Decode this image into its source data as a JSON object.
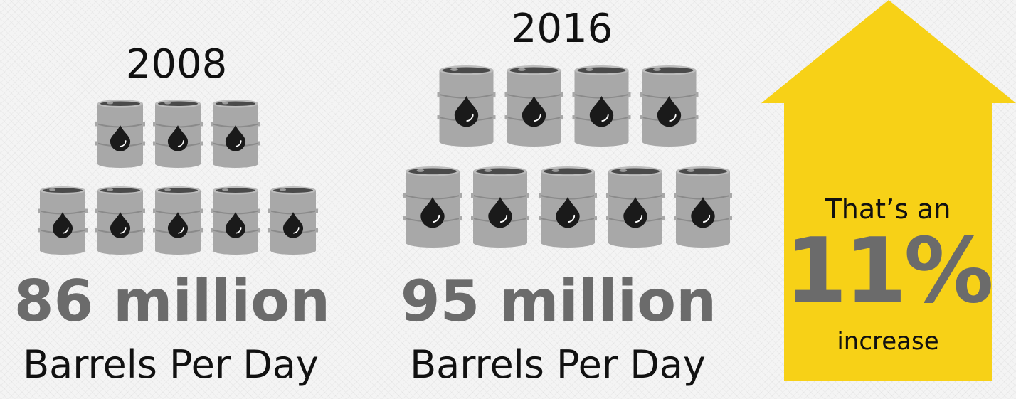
{
  "panels": [
    {
      "year": "2008",
      "amount": "86 million",
      "unit": "Barrels Per Day",
      "barrel_rows": [
        3,
        5
      ]
    },
    {
      "year": "2016",
      "amount": "95 million",
      "unit": "Barrels Per Day",
      "barrel_rows": [
        4,
        5
      ]
    }
  ],
  "callout": {
    "prefix": "That’s an",
    "percent": "11%",
    "suffix": "increase"
  },
  "colors": {
    "barrel": "#a8a8a8",
    "barrel_dark": "#8a8a8a",
    "drop": "#1a1a1a",
    "amount_text": "#6b6b6b",
    "arrow": "#f7d117"
  },
  "icons": [
    "oil-barrel-icon",
    "oil-drop-icon",
    "up-arrow-icon"
  ]
}
